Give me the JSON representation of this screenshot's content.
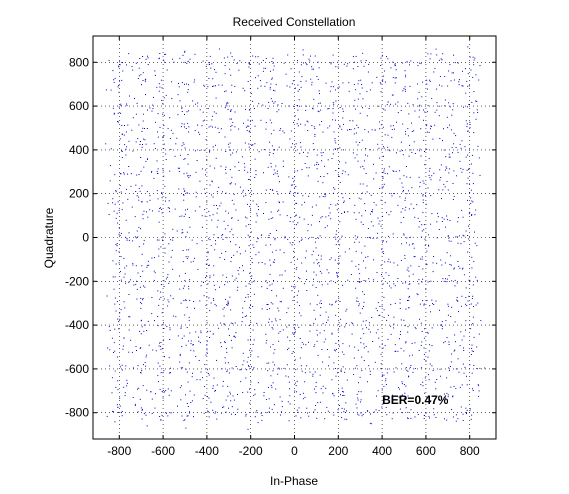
{
  "figure": {
    "background": "#ffffff"
  },
  "chart_data": {
    "type": "scatter",
    "title": "Received Constellation",
    "xlabel": "In-Phase",
    "ylabel": "Quadrature",
    "xlim": [
      -920,
      920
    ],
    "ylim": [
      -920,
      920
    ],
    "xticks": [
      -800,
      -600,
      -400,
      -200,
      0,
      200,
      400,
      600,
      800
    ],
    "yticks": [
      -800,
      -600,
      -400,
      -200,
      0,
      200,
      400,
      600,
      800
    ],
    "grid": true,
    "grid_style": "dotted",
    "point_color": "#0000cc",
    "constellation_levels": [
      -800,
      -700,
      -600,
      -500,
      -400,
      -300,
      -200,
      -100,
      0,
      100,
      200,
      300,
      400,
      500,
      600,
      700,
      800
    ],
    "noise_spread": 28,
    "points_per_symbol": 10,
    "annotation": {
      "text": "BER=0.47%",
      "x": 400,
      "y": -760
    }
  }
}
